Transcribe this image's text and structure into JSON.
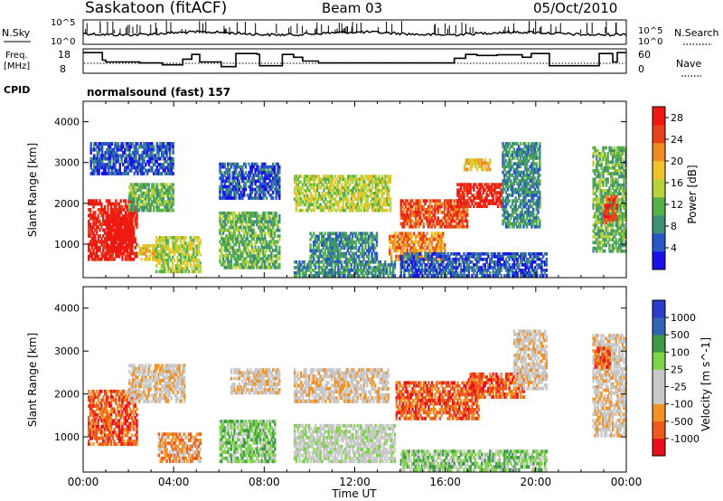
{
  "header": {
    "station": "Saskatoon (fitACF)",
    "beam": "Beam 03",
    "date": "05/Oct/2010"
  },
  "chart_data": [
    {
      "type": "line",
      "name": "noise-panel",
      "left_label": "N.Sky",
      "left_ticks": [
        "10^5",
        "10^0"
      ],
      "right_ticks": [
        "10^5",
        "10^0"
      ],
      "right_label": "N.Search"
    },
    {
      "type": "line",
      "name": "frequency-panel",
      "left_label_1": "Freq.",
      "left_label_2": "[MHz]",
      "left_ticks": [
        18,
        8
      ],
      "right_ticks": [
        60,
        0
      ],
      "right_label": "Nave",
      "freq_steps": [
        [
          0.0,
          17.0
        ],
        [
          0.85,
          13.0
        ],
        [
          1.0,
          12.0
        ],
        [
          2.5,
          11.5
        ],
        [
          3.5,
          10.5
        ],
        [
          4.4,
          13.5
        ],
        [
          4.8,
          16.0
        ],
        [
          5.15,
          12.0
        ],
        [
          6.1,
          9.5
        ],
        [
          6.75,
          16.5
        ],
        [
          7.7,
          16.0
        ],
        [
          7.8,
          10.0
        ],
        [
          8.8,
          16.0
        ],
        [
          9.3,
          14.5
        ],
        [
          9.7,
          12.5
        ],
        [
          10.4,
          11.5
        ],
        [
          16.4,
          14.0
        ],
        [
          16.9,
          16.0
        ],
        [
          17.4,
          15.5
        ],
        [
          18.3,
          15.8
        ],
        [
          18.5,
          15.8
        ],
        [
          19.4,
          14.5
        ],
        [
          19.8,
          16.5
        ],
        [
          20.6,
          10.0
        ],
        [
          22.8,
          16.5
        ],
        [
          23.4,
          12.0
        ],
        [
          23.6,
          17.0
        ],
        [
          24.0,
          17.0
        ]
      ],
      "nave_dotted": 30
    },
    {
      "type": "heatmap",
      "name": "power-panel",
      "cpid_label": "CPID",
      "cpid_text": "normalsound (fast) 157",
      "xlabel": "",
      "ylabel": "Slant Range [km]",
      "yticks": [
        1000,
        2000,
        3000,
        4000
      ],
      "ylim": [
        180,
        4500
      ],
      "xlim": [
        0,
        24
      ],
      "colorbar_label": "Power [dB]",
      "colorbar_ticks": [
        4,
        8,
        12,
        16,
        20,
        24,
        28
      ],
      "colorbar_range": [
        0,
        30
      ],
      "colors": [
        "#1a10e8",
        "#2757c4",
        "#3f8f78",
        "#56b04a",
        "#b8d23a",
        "#f1c32b",
        "#f08a22",
        "#e8421c",
        "#ee1a12"
      ],
      "regions": [
        {
          "t0": 0.2,
          "t1": 2.4,
          "r0": 600,
          "r1": 2100,
          "level": 8
        },
        {
          "t0": 1.0,
          "t1": 2.2,
          "r0": 800,
          "r1": 1800,
          "level": 9
        },
        {
          "t0": 2.4,
          "t1": 3.6,
          "r0": 600,
          "r1": 1000,
          "level": 5
        },
        {
          "t0": 2.0,
          "t1": 4.0,
          "r0": 1800,
          "r1": 2500,
          "level": 3
        },
        {
          "t0": 0.3,
          "t1": 4.0,
          "r0": 2700,
          "r1": 3500,
          "level": 1
        },
        {
          "t0": 3.2,
          "t1": 5.2,
          "r0": 300,
          "r1": 1200,
          "level": 4
        },
        {
          "t0": 6.0,
          "t1": 8.7,
          "r0": 400,
          "r1": 1800,
          "level": 3
        },
        {
          "t0": 6.0,
          "t1": 8.7,
          "r0": 2100,
          "r1": 3000,
          "level": 1
        },
        {
          "t0": 9.3,
          "t1": 13.6,
          "r0": 1800,
          "r1": 2700,
          "level": 4
        },
        {
          "t0": 10.0,
          "t1": 13.0,
          "r0": 600,
          "r1": 1300,
          "level": 2
        },
        {
          "t0": 9.3,
          "t1": 13.8,
          "r0": 200,
          "r1": 600,
          "level": 2
        },
        {
          "t0": 13.5,
          "t1": 16.0,
          "r0": 600,
          "r1": 1300,
          "level": 6
        },
        {
          "t0": 14.0,
          "t1": 17.0,
          "r0": 1400,
          "r1": 2100,
          "level": 7
        },
        {
          "t0": 16.5,
          "t1": 18.5,
          "r0": 1900,
          "r1": 2500,
          "level": 8
        },
        {
          "t0": 16.8,
          "t1": 18.0,
          "r0": 2800,
          "r1": 3100,
          "level": 5
        },
        {
          "t0": 18.5,
          "t1": 20.2,
          "r0": 1400,
          "r1": 3500,
          "level": 2
        },
        {
          "t0": 14.0,
          "t1": 20.5,
          "r0": 200,
          "r1": 800,
          "level": 1
        },
        {
          "t0": 22.5,
          "t1": 24.0,
          "r0": 800,
          "r1": 3400,
          "level": 3
        },
        {
          "t0": 23.0,
          "t1": 23.6,
          "r0": 1500,
          "r1": 2200,
          "level": 7
        }
      ]
    },
    {
      "type": "heatmap",
      "name": "velocity-panel",
      "xlabel": "Time UT",
      "ylabel": "Slant Range [km]",
      "yticks": [
        1000,
        2000,
        3000,
        4000
      ],
      "ylim": [
        180,
        4500
      ],
      "xlim": [
        0,
        24
      ],
      "xticks": [
        "00:00",
        "04:00",
        "08:00",
        "12:00",
        "16:00",
        "20:00",
        "00:00"
      ],
      "colorbar_label": "Velocity [m s^-1]",
      "colorbar_ticks": [
        "1000",
        "500",
        "100",
        "25",
        "-25",
        "-100",
        "-500",
        "-1000"
      ],
      "colors": [
        "#e8101a",
        "#ee5a1c",
        "#f29224",
        "#c8c8c8",
        "#c8c8c8",
        "#7ed348",
        "#3c9a48",
        "#3264b0",
        "#2d3cc8"
      ],
      "regions": [
        {
          "t0": 0.2,
          "t1": 2.4,
          "r0": 800,
          "r1": 2100,
          "level": 1
        },
        {
          "t0": 2.0,
          "t1": 4.5,
          "r0": 1800,
          "r1": 2700,
          "level": 3
        },
        {
          "t0": 3.3,
          "t1": 5.2,
          "r0": 400,
          "r1": 1100,
          "level": 2
        },
        {
          "t0": 6.0,
          "t1": 8.5,
          "r0": 400,
          "r1": 1400,
          "level": 5
        },
        {
          "t0": 6.5,
          "t1": 8.7,
          "r0": 2000,
          "r1": 2600,
          "level": 3
        },
        {
          "t0": 9.3,
          "t1": 13.5,
          "r0": 1800,
          "r1": 2600,
          "level": 3
        },
        {
          "t0": 9.3,
          "t1": 13.8,
          "r0": 400,
          "r1": 1300,
          "level": 4
        },
        {
          "t0": 13.8,
          "t1": 17.5,
          "r0": 1400,
          "r1": 2300,
          "level": 1
        },
        {
          "t0": 17.0,
          "t1": 19.5,
          "r0": 1900,
          "r1": 2500,
          "level": 1
        },
        {
          "t0": 19.0,
          "t1": 20.5,
          "r0": 2100,
          "r1": 3500,
          "level": 3
        },
        {
          "t0": 14.0,
          "t1": 20.5,
          "r0": 200,
          "r1": 700,
          "level": 5
        },
        {
          "t0": 22.5,
          "t1": 24.0,
          "r0": 1000,
          "r1": 3400,
          "level": 3
        },
        {
          "t0": 22.6,
          "t1": 23.3,
          "r0": 2600,
          "r1": 3100,
          "level": 1
        }
      ]
    }
  ]
}
